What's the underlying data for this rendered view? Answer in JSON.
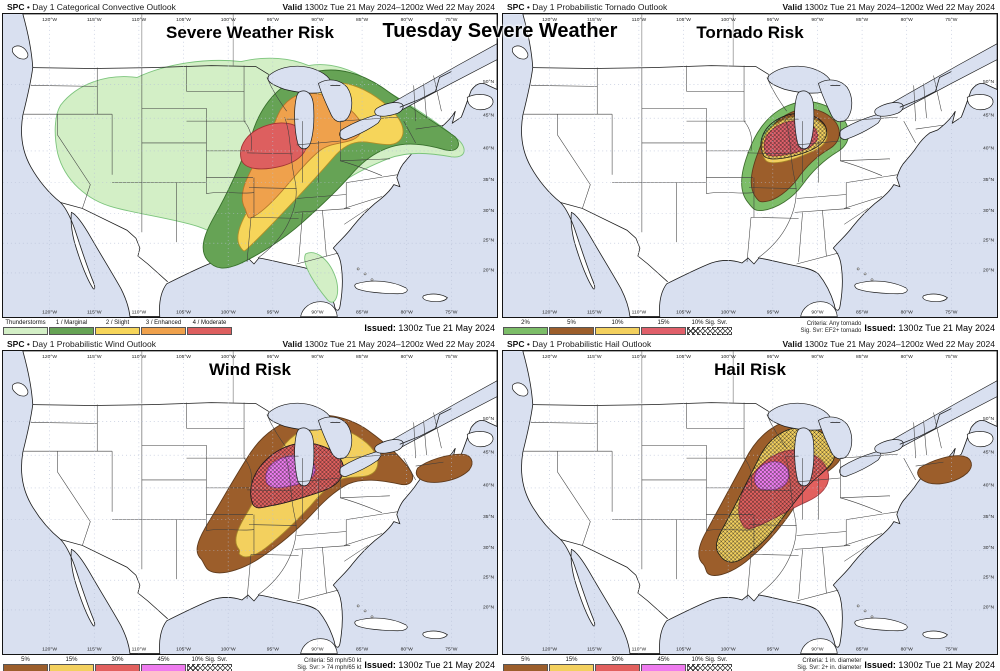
{
  "main_title": "Tuesday Severe Weather",
  "map_labels": {
    "lons": [
      "120°W",
      "115°W",
      "110°W",
      "105°W",
      "100°W",
      "95°W",
      "90°W",
      "85°W",
      "80°W",
      "75°W"
    ],
    "lats": [
      "50°N",
      "45°N",
      "40°N",
      "35°N",
      "30°N",
      "25°N",
      "20°N"
    ]
  },
  "panels": [
    {
      "id": "categorical",
      "agency": "SPC",
      "separator": "•",
      "product": "Day 1 Categorical Convective Outlook",
      "valid_label": "Valid",
      "valid_value": "1300z Tue 21 May 2024–1200z Wed 22 May 2024",
      "map_title": "Severe Weather Risk",
      "issued_label": "Issued:",
      "issued_value": "1300z Tue 21 May 2024",
      "criteria_lines": [],
      "legend": [
        {
          "label": "Thunderstorms",
          "color": "#d3efc6"
        },
        {
          "label": "1 / Marginal",
          "color": "#66a355"
        },
        {
          "label": "2 / Slight",
          "color": "#f6d55a"
        },
        {
          "label": "3 / Enhanced",
          "color": "#efa14c"
        },
        {
          "label": "4 / Moderate",
          "color": "#dd5f5f"
        }
      ]
    },
    {
      "id": "tornado",
      "agency": "SPC",
      "separator": "•",
      "product": "Day 1 Probabilistic Tornado Outlook",
      "valid_label": "Valid",
      "valid_value": "1300z Tue 21 May 2024–1200z Wed 22 May 2024",
      "map_title": "Tornado Risk",
      "issued_label": "Issued:",
      "issued_value": "1300z Tue 21 May 2024",
      "criteria_lines": [
        "Criteria: Any tornado",
        "Sig. Svr: EF2+ tornado"
      ],
      "legend": [
        {
          "label": "2%",
          "color": "#7cbd68"
        },
        {
          "label": "5%",
          "color": "#9c5e2b"
        },
        {
          "label": "10%",
          "color": "#f3d05e"
        },
        {
          "label": "15%",
          "color": "#e0606a"
        },
        {
          "label": "10% Sig. Svr.",
          "color": "#ffffff",
          "hatch": true
        }
      ]
    },
    {
      "id": "wind",
      "agency": "SPC",
      "separator": "•",
      "product": "Day 1 Probabilistic Wind Outlook",
      "valid_label": "Valid",
      "valid_value": "1300z Tue 21 May 2024–1200z Wed 22 May 2024",
      "map_title": "Wind Risk",
      "issued_label": "Issued:",
      "issued_value": "1300z Tue 21 May 2024",
      "criteria_lines": [
        "Criteria: 58 mph/50 kt",
        "Sig. Svr: > 74 mph/65 kt"
      ],
      "legend": [
        {
          "label": "5%",
          "color": "#9c5e2b"
        },
        {
          "label": "15%",
          "color": "#f3d05e"
        },
        {
          "label": "30%",
          "color": "#e2605e"
        },
        {
          "label": "45%",
          "color": "#ee7bee"
        },
        {
          "label": "10% Sig. Svr.",
          "color": "#ffffff",
          "hatch": true
        }
      ]
    },
    {
      "id": "hail",
      "agency": "SPC",
      "separator": "•",
      "product": "Day 1 Probabilistic Hail Outlook",
      "valid_label": "Valid",
      "valid_value": "1300z Tue 21 May 2024–1200z Wed 22 May 2024",
      "map_title": "Hail Risk",
      "issued_label": "Issued:",
      "issued_value": "1300z Tue 21 May 2024",
      "criteria_lines": [
        "Criteria: 1 in. diameter",
        "Sig. Svr: 2+ in. diameter"
      ],
      "legend": [
        {
          "label": "5%",
          "color": "#9c5e2b"
        },
        {
          "label": "15%",
          "color": "#f3d05e"
        },
        {
          "label": "30%",
          "color": "#e2605e"
        },
        {
          "label": "45%",
          "color": "#ee7bee"
        },
        {
          "label": "10% Sig. Svr.",
          "color": "#ffffff",
          "hatch": true
        }
      ]
    }
  ],
  "chart_data": [
    {
      "type": "geographic-contour",
      "title": "Severe Weather Risk",
      "product": "SPC Day 1 Categorical Convective Outlook",
      "valid": "1300z Tue 21 May 2024–1200z Wed 22 May 2024",
      "issued": "1300z Tue 21 May 2024",
      "levels": [
        {
          "category": "Thunderstorms",
          "color": "#d3efc6",
          "region": "Broad area: Great Basin/Rockies through Plains, Midwest, Ohio Valley to New England; separate area over Florida peninsula"
        },
        {
          "category": "1 / Marginal",
          "color": "#66a355",
          "region": "SW Texas northeast through Plains, Upper Midwest, Great Lakes to New England"
        },
        {
          "category": "2 / Slight",
          "color": "#f6d55a",
          "region": "Central Texas northeast through Missouri, Iowa, Illinois, Wisconsin, Michigan"
        },
        {
          "category": "3 / Enhanced",
          "color": "#efa14c",
          "region": "Eastern Kansas/Oklahoma through Iowa, Illinois, southern Wisconsin, Lake Michigan"
        },
        {
          "category": "4 / Moderate",
          "color": "#dd5f5f",
          "region": "Iowa / far northern Illinois / southern Wisconsin"
        }
      ],
      "max_category": "4 / Moderate"
    },
    {
      "type": "geographic-contour",
      "title": "Tornado Risk",
      "product": "SPC Day 1 Probabilistic Tornado Outlook",
      "valid": "1300z Tue 21 May 2024–1200z Wed 22 May 2024",
      "issued": "1300z Tue 21 May 2024",
      "criteria": "Any tornado; Sig. Svr: EF2+ tornado",
      "levels": [
        {
          "probability_pct": 2,
          "color": "#7cbd68",
          "region": "Kansas/Missouri through Iowa, Wisconsin, Illinois, Michigan"
        },
        {
          "probability_pct": 5,
          "color": "#9c5e2b",
          "region": "Missouri through Iowa, southern Wisconsin, northern Illinois"
        },
        {
          "probability_pct": 10,
          "color": "#f3d05e",
          "region": "Iowa / southern Wisconsin / northern Illinois"
        },
        {
          "probability_pct": 15,
          "color": "#e0606a",
          "region": "Central/eastern Iowa into far southwest Wisconsin"
        },
        {
          "probability_pct": 10,
          "significant": true,
          "hatched": true,
          "region": "Hatched significant-tornado area over the 10-15% region"
        }
      ],
      "max_probability_pct": 15
    },
    {
      "type": "geographic-contour",
      "title": "Wind Risk",
      "product": "SPC Day 1 Probabilistic Wind Outlook",
      "valid": "1300z Tue 21 May 2024–1200z Wed 22 May 2024",
      "issued": "1300z Tue 21 May 2024",
      "criteria": "58 mph/50 kt; Sig. Svr: > 74 mph/65 kt",
      "levels": [
        {
          "probability_pct": 5,
          "color": "#9c5e2b",
          "region": "SW Texas northeast to Great Lakes; separate area over northern New England"
        },
        {
          "probability_pct": 15,
          "color": "#f3d05e",
          "region": "Oklahoma/Missouri through Iowa, Illinois, Wisconsin, Michigan"
        },
        {
          "probability_pct": 30,
          "color": "#e2605e",
          "region": "Iowa, northern Illinois, southern Wisconsin"
        },
        {
          "probability_pct": 45,
          "color": "#ee7bee",
          "region": "Central/eastern Iowa"
        },
        {
          "probability_pct": 10,
          "significant": true,
          "hatched": true,
          "region": "Hatched significant-wind area over the 30-45% region"
        }
      ],
      "max_probability_pct": 45
    },
    {
      "type": "geographic-contour",
      "title": "Hail Risk",
      "product": "SPC Day 1 Probabilistic Hail Outlook",
      "valid": "1300z Tue 21 May 2024–1200z Wed 22 May 2024",
      "issued": "1300z Tue 21 May 2024",
      "criteria": "1 in. diameter; Sig. Svr: 2+ in. diameter",
      "levels": [
        {
          "probability_pct": 5,
          "color": "#9c5e2b",
          "region": "SW Texas northeast to Great Lakes; separate area over northern New England"
        },
        {
          "probability_pct": 15,
          "color": "#f3d05e",
          "region": "Central Texas through Missouri, Iowa, Wisconsin (largely hatched)"
        },
        {
          "probability_pct": 30,
          "color": "#e2605e",
          "region": "Iowa / northern Missouri / Illinois"
        },
        {
          "probability_pct": 45,
          "color": "#ee7bee",
          "region": "Central Iowa"
        },
        {
          "probability_pct": 10,
          "significant": true,
          "hatched": true,
          "region": "Hatched significant-hail area over the 15-45% region"
        }
      ],
      "max_probability_pct": 45
    }
  ]
}
